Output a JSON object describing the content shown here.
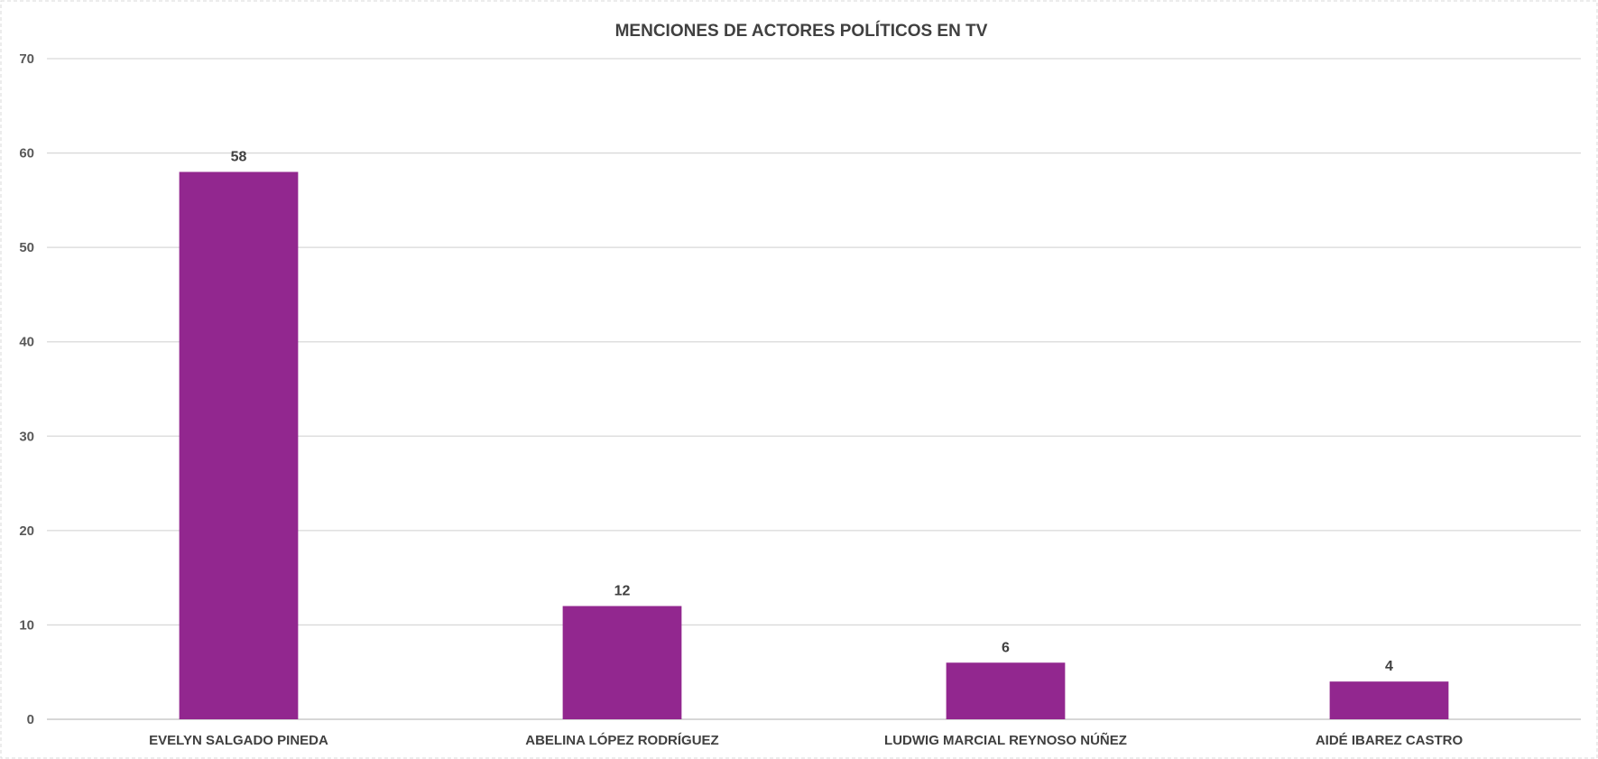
{
  "chart_data": {
    "type": "bar",
    "title": "MENCIONES DE ACTORES POLÍTICOS EN TV",
    "categories": [
      "EVELYN SALGADO PINEDA",
      "ABELINA LÓPEZ RODRÍGUEZ",
      "LUDWIG MARCIAL REYNOSO NÚÑEZ",
      "AIDÉ IBAREZ CASTRO"
    ],
    "values": [
      58,
      12,
      6,
      4
    ],
    "data_labels": [
      "58",
      "12",
      "6",
      "4"
    ],
    "xlabel": "",
    "ylabel": "",
    "ylim": [
      0,
      70
    ],
    "yticks": [
      0,
      10,
      20,
      30,
      40,
      50,
      60,
      70
    ],
    "grid": true,
    "legend": "none",
    "bar_color": "#92278f"
  }
}
